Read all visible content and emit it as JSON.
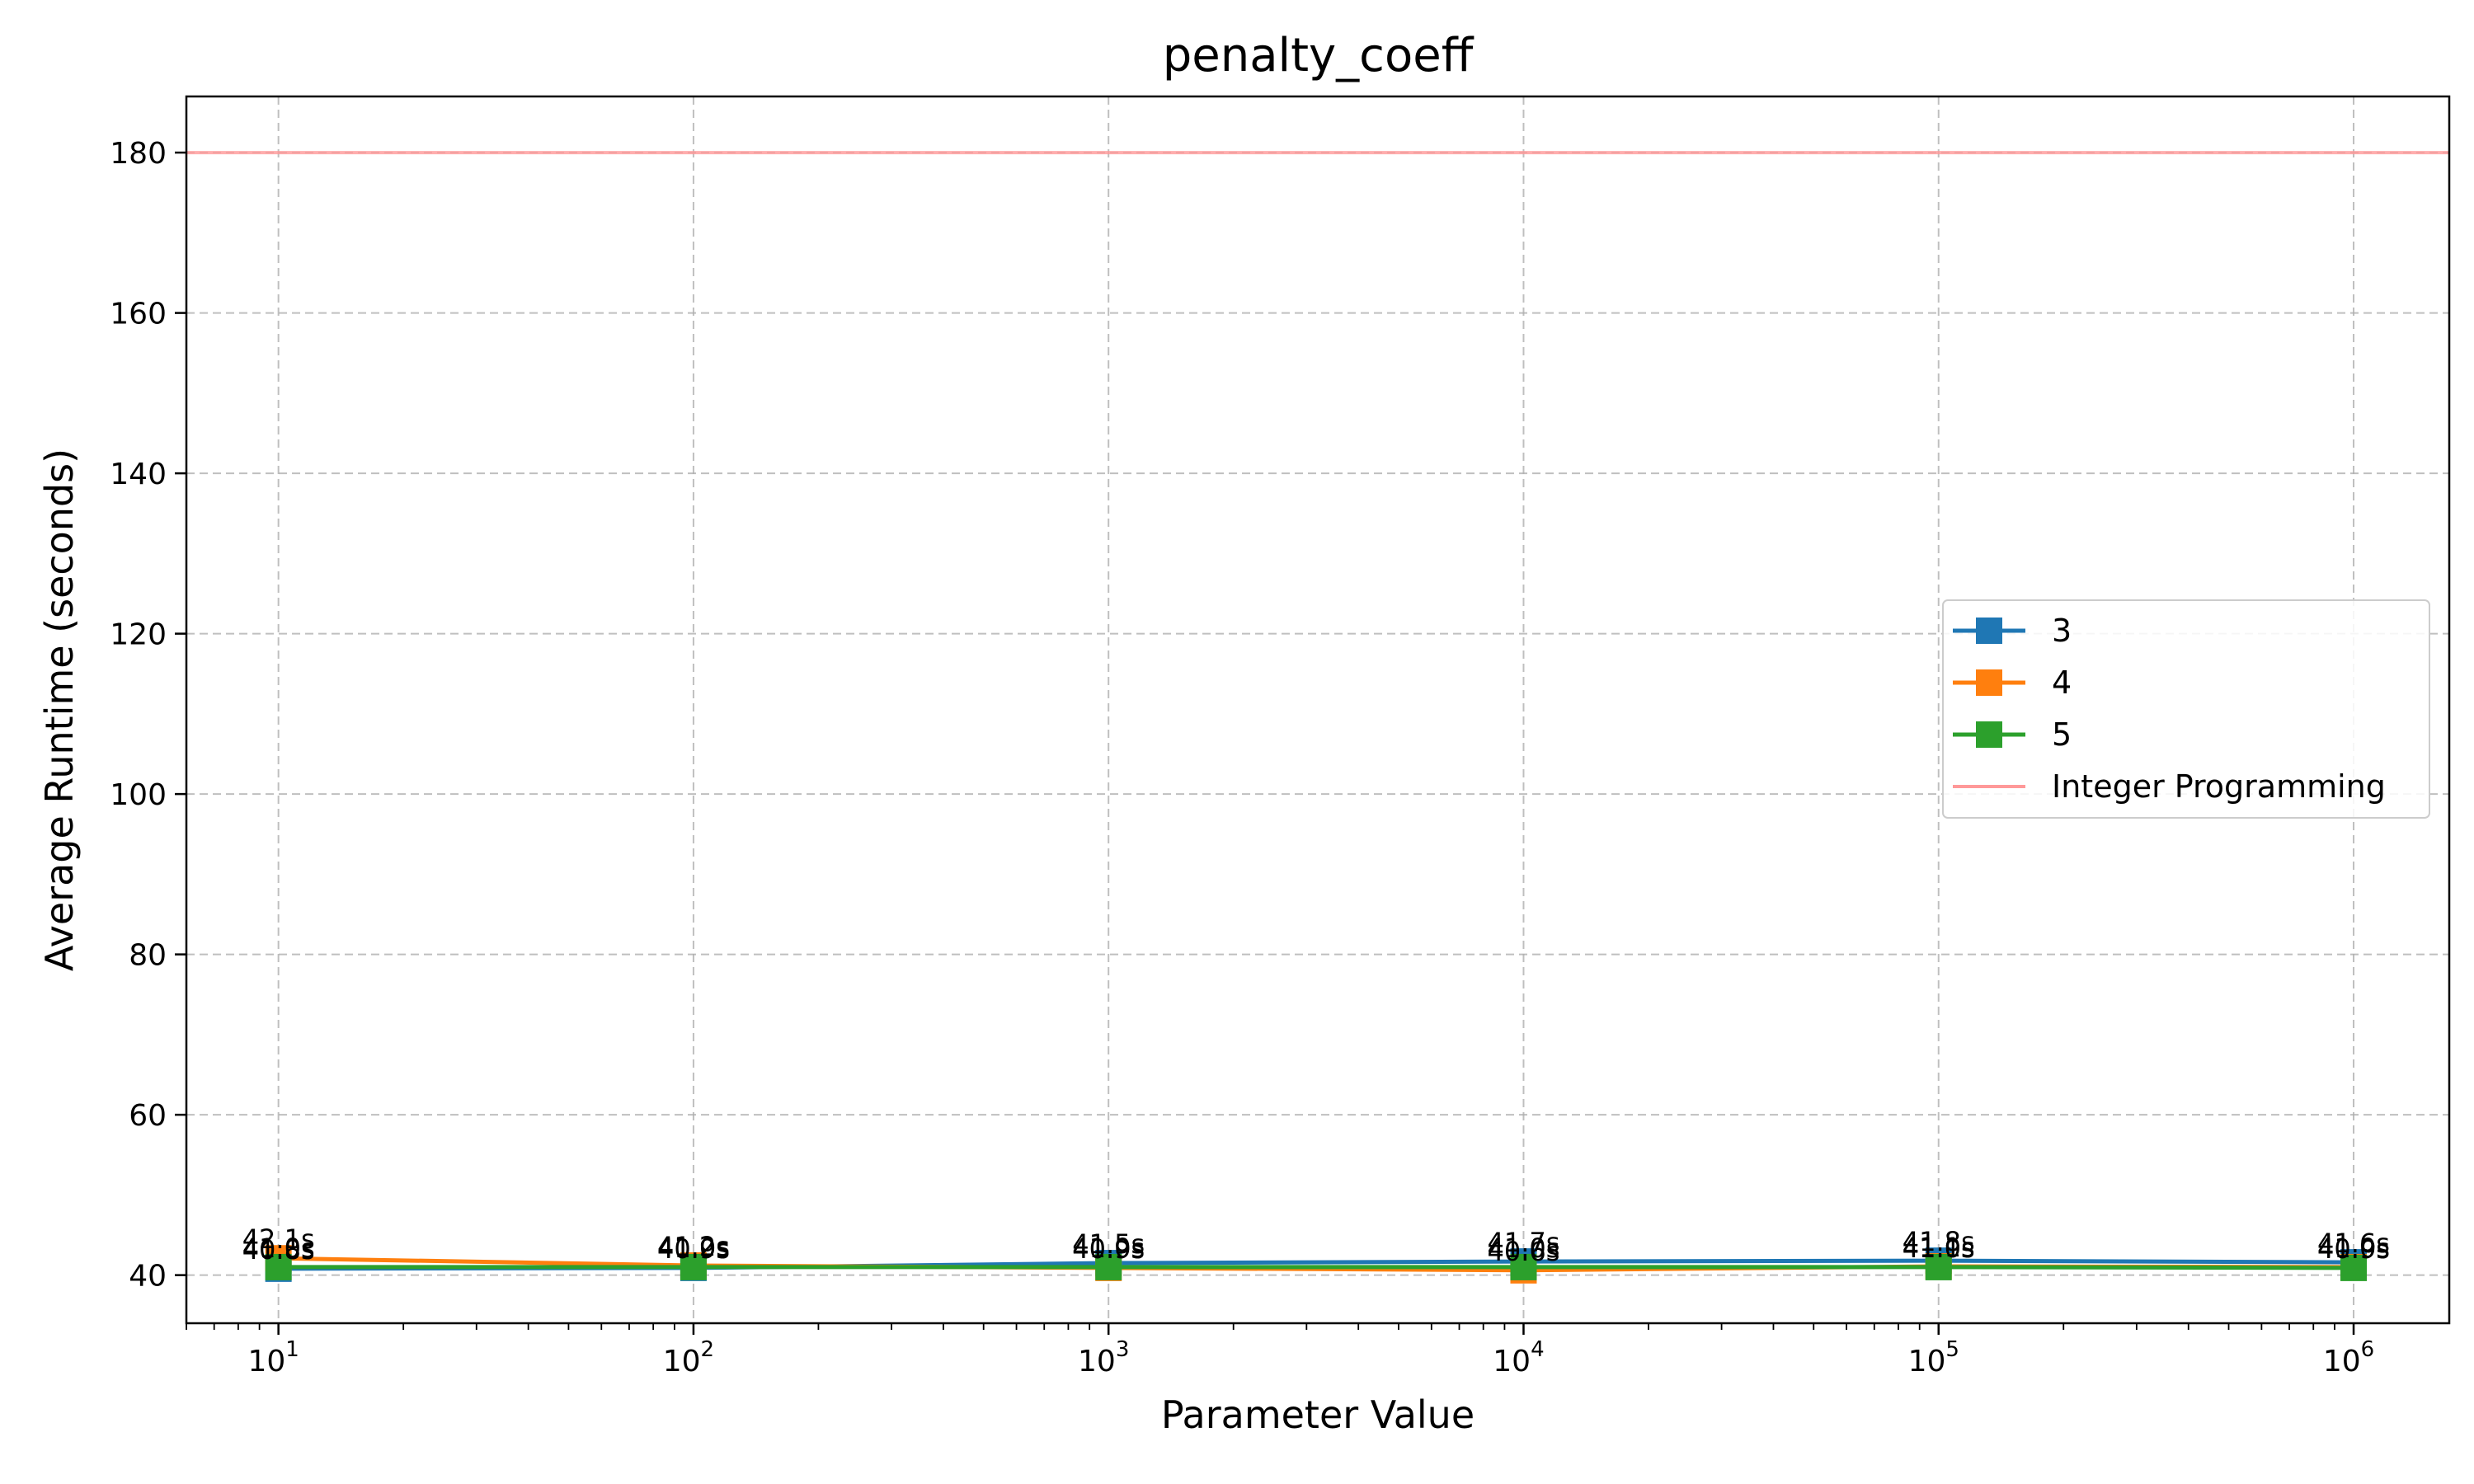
{
  "chart_data": {
    "type": "line",
    "title": "penalty_coeff",
    "xlabel": "Parameter Value",
    "ylabel": "Average Runtime (seconds)",
    "xscale": "log",
    "xlim": [
      6,
      1700000
    ],
    "ylim": [
      34,
      187
    ],
    "x": [
      10,
      100,
      1000,
      10000,
      100000,
      1000000
    ],
    "x_tick_labels": [
      "10",
      "10",
      "10",
      "10",
      "10",
      "10"
    ],
    "x_tick_exponents": [
      "1",
      "2",
      "3",
      "4",
      "5",
      "6"
    ],
    "y_ticks": [
      40,
      60,
      80,
      100,
      120,
      140,
      160,
      180
    ],
    "grid": true,
    "legend_position": "center-right",
    "series": [
      {
        "name": "3",
        "color": "#1f77b4",
        "marker": "square",
        "values": [
          40.8,
          40.9,
          41.5,
          41.7,
          41.8,
          41.6
        ],
        "labels": [
          "40.8s",
          "40.9s",
          "41.5s",
          "41.7s",
          "41.8s",
          "41.6s"
        ]
      },
      {
        "name": "4",
        "color": "#ff7f0e",
        "marker": "square",
        "values": [
          42.1,
          41.2,
          40.9,
          40.6,
          41.1,
          41.0
        ],
        "labels": [
          "42.1s",
          "41.2s",
          "40.9s",
          "40.6s",
          "41.1s",
          "41.0s"
        ]
      },
      {
        "name": "5",
        "color": "#2ca02c",
        "marker": "square",
        "values": [
          41.0,
          41.0,
          41.0,
          41.0,
          41.0,
          40.9
        ],
        "labels": [
          "41.0s",
          "41.0s",
          "41.0s",
          "41.0s",
          "41.0s",
          "40.9s"
        ]
      }
    ],
    "reference_line": {
      "name": "Integer Programming",
      "value": 180,
      "color": "#ff9999"
    }
  }
}
